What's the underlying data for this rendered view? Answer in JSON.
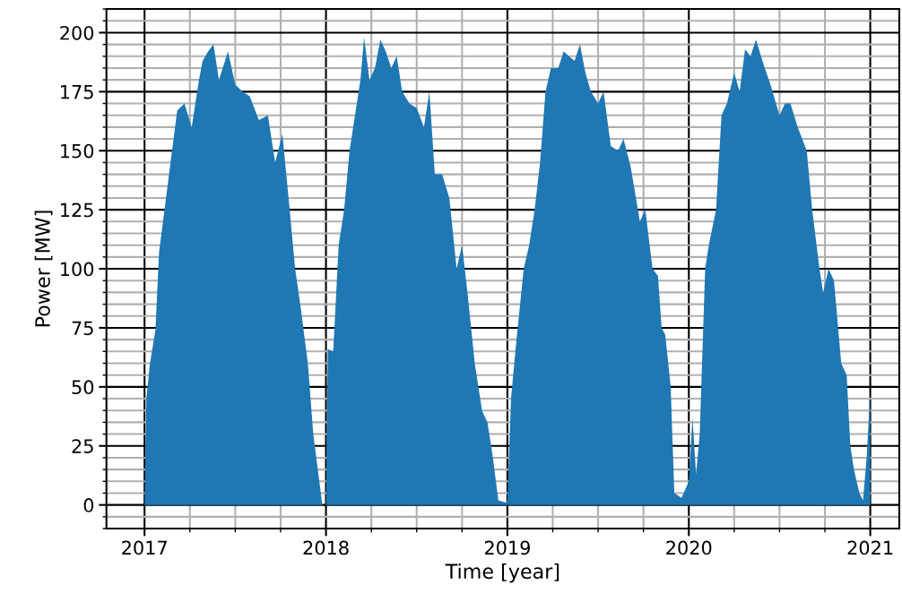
{
  "chart_data": {
    "type": "area",
    "xlabel": "Time [year]",
    "ylabel": "Power [MW]",
    "xlim": [
      2016.79,
      2021.16
    ],
    "ylim": [
      -10,
      210
    ],
    "xticks": [
      2017,
      {
        "value": 2017.25,
        "label": null
      },
      {
        "value": 2017.5,
        "label": null
      },
      {
        "value": 2017.75,
        "label": null
      },
      2018,
      {
        "value": 2018.25,
        "label": null
      },
      {
        "value": 2018.5,
        "label": null
      },
      {
        "value": 2018.75,
        "label": null
      },
      2019,
      {
        "value": 2019.25,
        "label": null
      },
      {
        "value": 2019.5,
        "label": null
      },
      {
        "value": 2019.75,
        "label": null
      },
      2020,
      {
        "value": 2020.25,
        "label": null
      },
      {
        "value": 2020.5,
        "label": null
      },
      {
        "value": 2020.75,
        "label": null
      },
      2021
    ],
    "yticks": [
      {
        "value": -10,
        "label": null
      },
      {
        "value": -5,
        "label": null
      },
      0,
      {
        "value": 5,
        "label": null
      },
      {
        "value": 10,
        "label": null
      },
      {
        "value": 15,
        "label": null
      },
      {
        "value": 20,
        "label": null
      },
      25,
      {
        "value": 30,
        "label": null
      },
      {
        "value": 35,
        "label": null
      },
      {
        "value": 40,
        "label": null
      },
      {
        "value": 45,
        "label": null
      },
      50,
      {
        "value": 55,
        "label": null
      },
      {
        "value": 60,
        "label": null
      },
      {
        "value": 65,
        "label": null
      },
      {
        "value": 70,
        "label": null
      },
      75,
      {
        "value": 80,
        "label": null
      },
      {
        "value": 85,
        "label": null
      },
      {
        "value": 90,
        "label": null
      },
      {
        "value": 95,
        "label": null
      },
      100,
      {
        "value": 105,
        "label": null
      },
      {
        "value": 110,
        "label": null
      },
      {
        "value": 115,
        "label": null
      },
      {
        "value": 120,
        "label": null
      },
      125,
      {
        "value": 130,
        "label": null
      },
      {
        "value": 135,
        "label": null
      },
      {
        "value": 140,
        "label": null
      },
      {
        "value": 145,
        "label": null
      },
      150,
      {
        "value": 155,
        "label": null
      },
      {
        "value": 160,
        "label": null
      },
      {
        "value": 165,
        "label": null
      },
      {
        "value": 170,
        "label": null
      },
      175,
      {
        "value": 180,
        "label": null
      },
      {
        "value": 185,
        "label": null
      },
      {
        "value": 190,
        "label": null
      },
      {
        "value": 195,
        "label": null
      },
      200,
      {
        "value": 205,
        "label": null
      },
      {
        "value": 210,
        "label": null
      }
    ],
    "grid": true,
    "series": [
      {
        "color": "#1f77b4",
        "x": [
          2017.0,
          2017.01,
          2017.03,
          2017.06,
          2017.08,
          2017.11,
          2017.14,
          2017.18,
          2017.22,
          2017.26,
          2017.3,
          2017.32,
          2017.35,
          2017.38,
          2017.41,
          2017.46,
          2017.5,
          2017.54,
          2017.58,
          2017.63,
          2017.68,
          2017.72,
          2017.76,
          2017.8,
          2017.83,
          2017.86,
          2017.9,
          2017.93,
          2017.96,
          2017.98,
          2018.0,
          2018.01,
          2018.04,
          2018.07,
          2018.1,
          2018.13,
          2018.16,
          2018.19,
          2018.21,
          2018.24,
          2018.27,
          2018.3,
          2018.33,
          2018.36,
          2018.39,
          2018.42,
          2018.46,
          2018.5,
          2018.54,
          2018.57,
          2018.6,
          2018.64,
          2018.68,
          2018.72,
          2018.75,
          2018.78,
          2018.82,
          2018.86,
          2018.89,
          2018.92,
          2018.95,
          2018.99,
          2019.0,
          2019.02,
          2019.05,
          2019.09,
          2019.12,
          2019.15,
          2019.18,
          2019.21,
          2019.24,
          2019.28,
          2019.31,
          2019.34,
          2019.37,
          2019.4,
          2019.43,
          2019.46,
          2019.5,
          2019.53,
          2019.57,
          2019.61,
          2019.64,
          2019.68,
          2019.73,
          2019.76,
          2019.8,
          2019.83,
          2019.85,
          2019.87,
          2019.9,
          2019.92,
          2019.96,
          2020.0,
          2020.02,
          2020.04,
          2020.06,
          2020.09,
          2020.11,
          2020.15,
          2020.18,
          2020.21,
          2020.25,
          2020.28,
          2020.31,
          2020.34,
          2020.37,
          2020.41,
          2020.45,
          2020.5,
          2020.53,
          2020.56,
          2020.6,
          2020.65,
          2020.68,
          2020.72,
          2020.74,
          2020.77,
          2020.8,
          2020.84,
          2020.87,
          2020.89,
          2020.91,
          2020.94,
          2020.96,
          2020.98,
          2021.0
        ],
        "values": [
          0,
          45,
          60,
          74,
          107,
          125,
          143,
          167,
          170,
          160,
          180,
          188,
          192,
          195,
          180,
          192,
          178,
          175,
          173,
          163,
          165,
          145,
          157,
          125,
          100,
          84,
          60,
          30,
          12,
          0,
          0,
          66,
          65,
          110,
          125,
          150,
          165,
          180,
          198,
          180,
          185,
          197,
          192,
          185,
          190,
          175,
          170,
          168,
          160,
          175,
          140,
          140,
          130,
          100,
          110,
          90,
          60,
          40,
          35,
          20,
          2,
          1,
          2,
          45,
          70,
          100,
          110,
          125,
          145,
          175,
          185,
          185,
          192,
          190,
          188,
          195,
          183,
          175,
          170,
          175,
          152,
          150,
          155,
          143,
          120,
          125,
          100,
          97,
          75,
          72,
          50,
          5,
          3,
          10,
          37,
          13,
          30,
          100,
          110,
          125,
          165,
          170,
          183,
          175,
          193,
          190,
          197,
          187,
          178,
          165,
          170,
          170,
          160,
          150,
          125,
          100,
          90,
          100,
          95,
          60,
          55,
          25,
          15,
          5,
          2,
          20,
          48
        ]
      }
    ]
  }
}
